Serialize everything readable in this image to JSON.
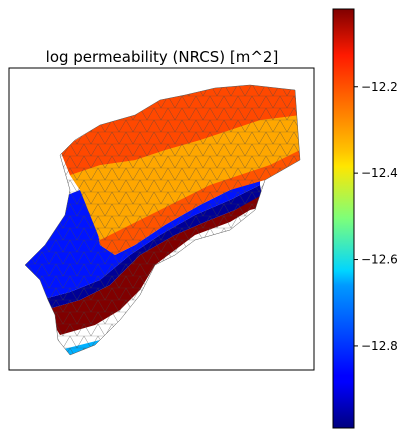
{
  "chart_data": {
    "type": "heatmap",
    "title": "log permeability (NRCS) [m^2]",
    "colormap": "jet",
    "colorbar": {
      "vmin": -12.99,
      "vmax": -12.02,
      "ticks": [
        -12.2,
        -12.4,
        -12.6,
        -12.8
      ],
      "tick_labels": [
        "−12.2",
        "−12.4",
        "−12.6",
        "−12.8"
      ]
    },
    "zones": [
      {
        "name": "upper-band",
        "value": -12.3
      },
      {
        "name": "orange-band",
        "value": -12.22
      },
      {
        "name": "dark-red-band",
        "value": -12.02
      },
      {
        "name": "light-blue-band",
        "value": -12.7
      },
      {
        "name": "blue-band",
        "value": -12.85
      },
      {
        "name": "navy-band",
        "value": -12.97
      }
    ],
    "axes_visible": false,
    "mesh": "triangulated"
  }
}
